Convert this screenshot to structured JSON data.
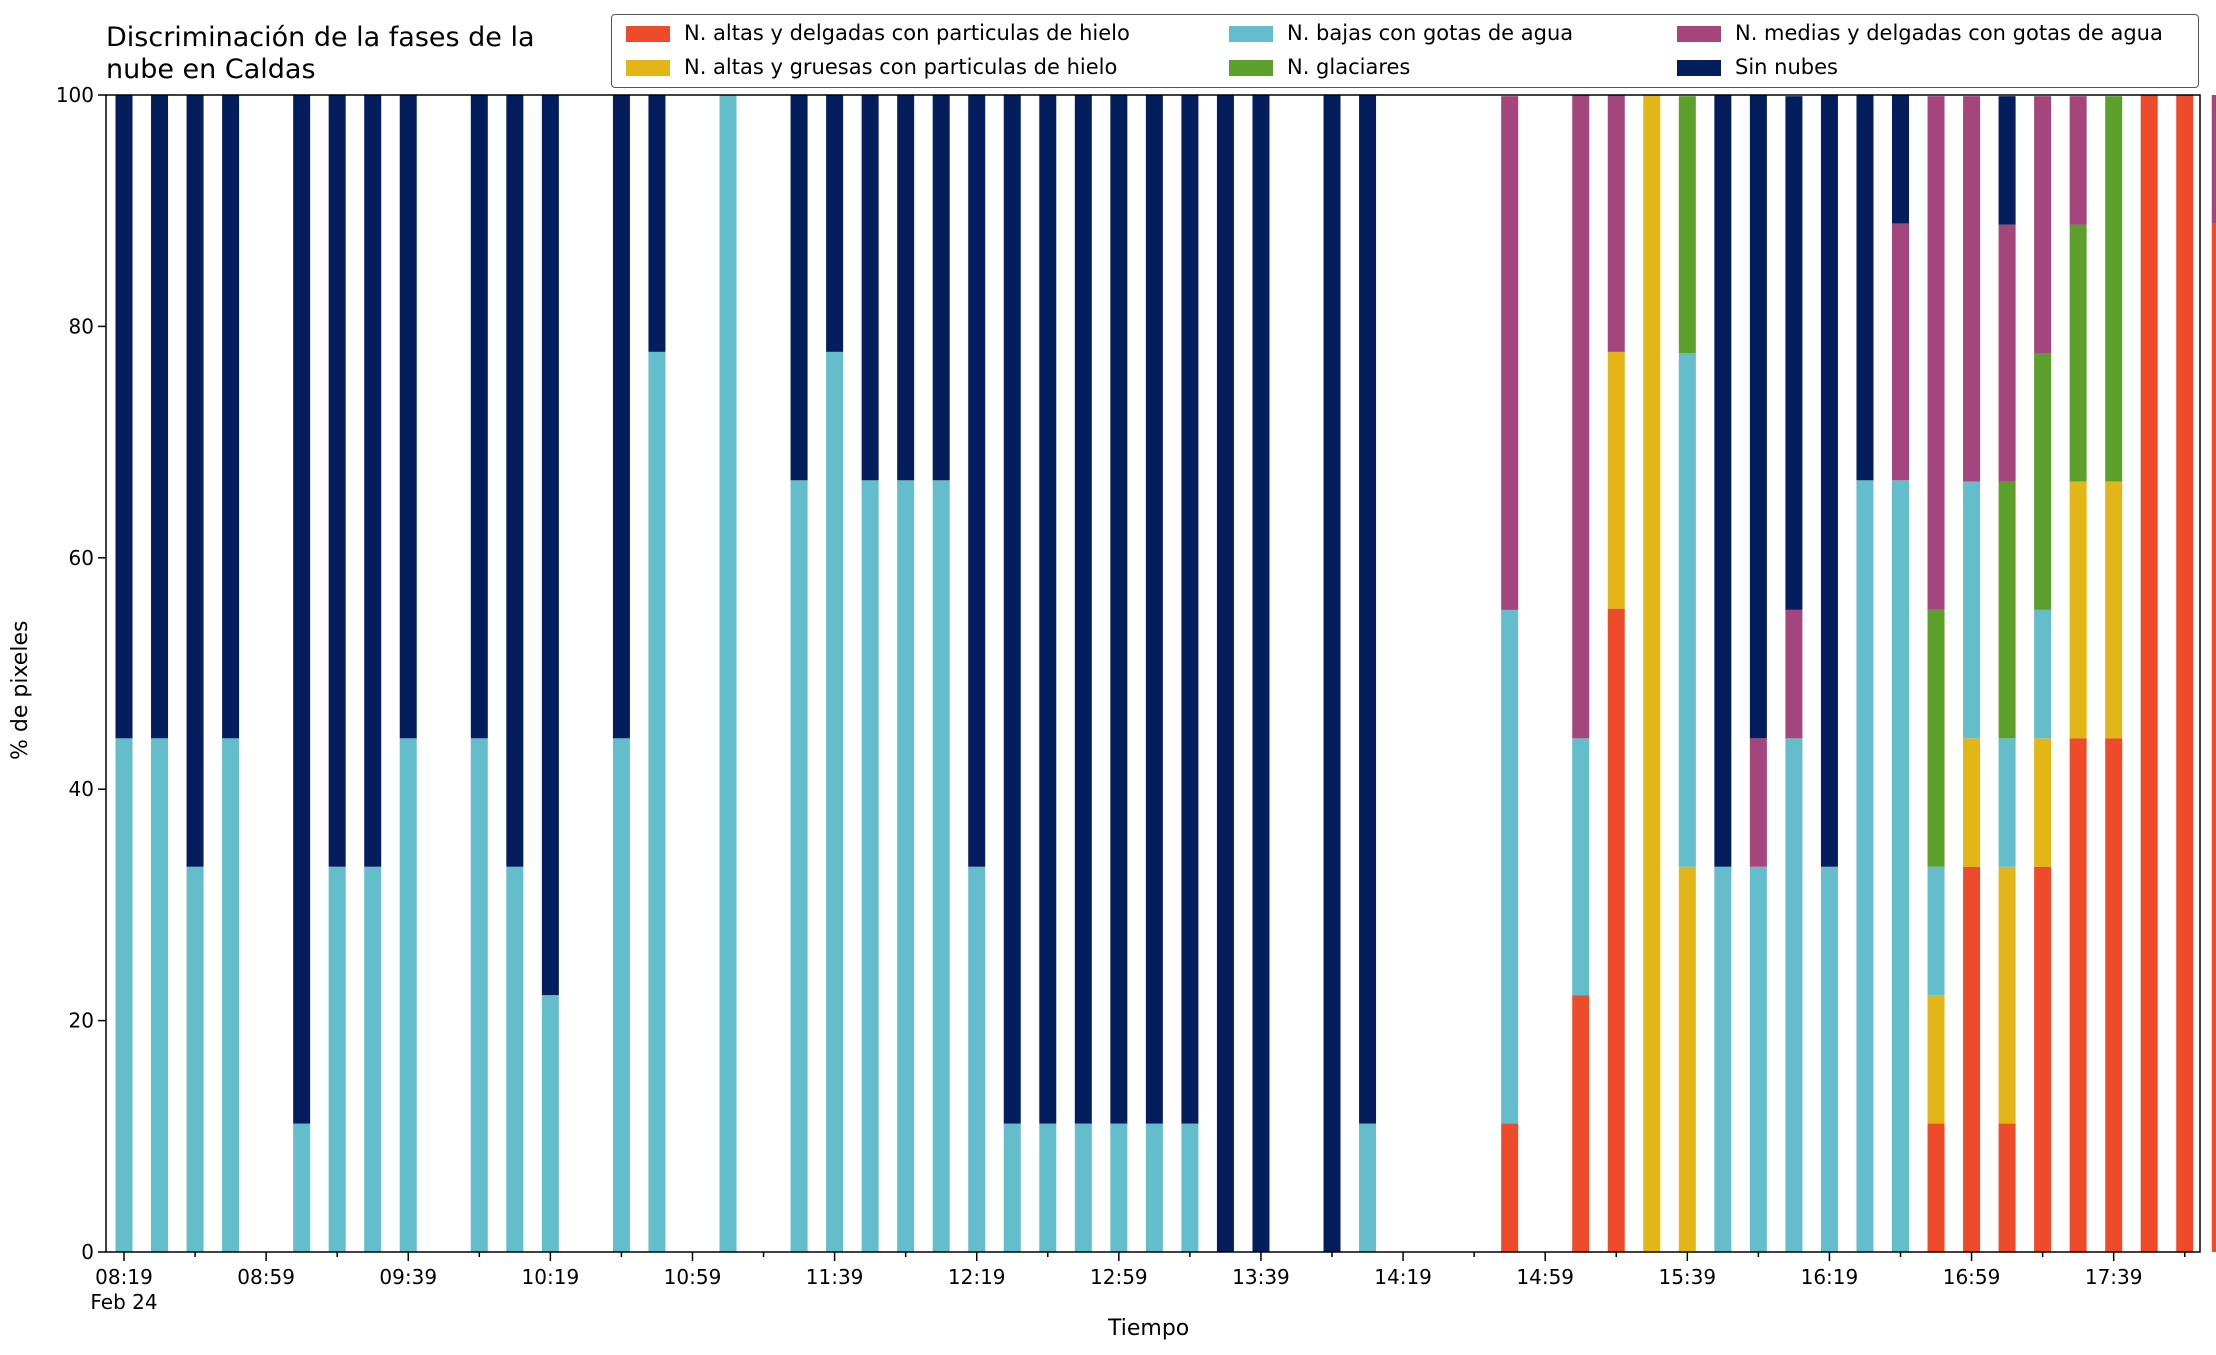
{
  "chart_data": {
    "type": "bar",
    "stacked": true,
    "title": "Discriminación de la fases de la\nnube en Caldas",
    "xlabel": "Tiempo",
    "ylabel": "% de pixeles",
    "ylim": [
      0,
      100
    ],
    "yticks": [
      "0",
      "20",
      "40",
      "60",
      "80",
      "100"
    ],
    "xtick_labels": [
      "08:19",
      "08:59",
      "09:39",
      "10:19",
      "10:59",
      "11:39",
      "12:19",
      "12:59",
      "13:39",
      "14:19",
      "14:59",
      "15:39",
      "16:19",
      "16:59",
      "17:39"
    ],
    "xtick_sublabel": "Feb 24",
    "time_start": "08:19",
    "time_step_minutes": 10,
    "grid": false,
    "legend_position": "top-right",
    "series": [
      {
        "name": "N. altas y delgadas con particulas de hielo",
        "color": "#ee4b2b",
        "values": [
          0,
          0,
          0,
          0,
          0,
          0,
          0,
          0,
          0,
          0,
          0,
          0,
          0,
          0,
          0,
          0,
          0,
          0,
          0,
          0,
          0,
          0,
          0,
          0,
          0,
          0,
          0,
          0,
          0,
          0,
          0,
          0,
          0,
          0,
          0,
          0,
          0,
          0,
          0,
          11.1,
          0,
          22.2,
          55.6,
          0,
          0,
          0,
          0,
          0,
          0,
          0,
          0,
          11.1,
          33.3,
          11.1,
          33.3,
          44.4,
          44.4,
          100,
          100,
          88.9
        ]
      },
      {
        "name": "N. altas y gruesas con particulas de hielo",
        "color": "#e3b618",
        "values": [
          0,
          0,
          0,
          0,
          0,
          0,
          0,
          0,
          0,
          0,
          0,
          0,
          0,
          0,
          0,
          0,
          0,
          0,
          0,
          0,
          0,
          0,
          0,
          0,
          0,
          0,
          0,
          0,
          0,
          0,
          0,
          0,
          0,
          0,
          0,
          0,
          0,
          0,
          0,
          0,
          0,
          0,
          22.2,
          100,
          33.3,
          0,
          0,
          0,
          0,
          0,
          0,
          11.1,
          11.1,
          22.2,
          11.1,
          22.2,
          22.2,
          0,
          0,
          0
        ]
      },
      {
        "name": "N. bajas con gotas de agua",
        "color": "#63bdca",
        "values": [
          44.4,
          44.4,
          33.3,
          44.4,
          0,
          11.1,
          33.3,
          33.3,
          44.4,
          0,
          44.4,
          33.3,
          22.2,
          0,
          44.4,
          77.8,
          0,
          100,
          0,
          66.7,
          77.8,
          66.7,
          66.7,
          66.7,
          33.3,
          11.1,
          11.1,
          11.1,
          11.1,
          11.1,
          11.1,
          0,
          0,
          0,
          0,
          11.1,
          0,
          0,
          0,
          44.4,
          0,
          22.2,
          0,
          0,
          44.4,
          33.3,
          33.3,
          44.4,
          33.3,
          66.7,
          66.7,
          11.1,
          22.2,
          11.1,
          11.1,
          0,
          0,
          0,
          0,
          0
        ]
      },
      {
        "name": "N. glaciares",
        "color": "#5ca02c",
        "values": [
          0,
          0,
          0,
          0,
          0,
          0,
          0,
          0,
          0,
          0,
          0,
          0,
          0,
          0,
          0,
          0,
          0,
          0,
          0,
          0,
          0,
          0,
          0,
          0,
          0,
          0,
          0,
          0,
          0,
          0,
          0,
          0,
          0,
          0,
          0,
          0,
          0,
          0,
          0,
          0,
          0,
          0,
          0,
          0,
          22.2,
          0,
          0,
          0,
          0,
          0,
          0,
          22.2,
          0,
          22.2,
          22.2,
          22.2,
          33.3,
          0,
          0,
          0
        ]
      },
      {
        "name": "N. medias y delgadas con gotas de agua",
        "color": "#a4457d",
        "values": [
          0,
          0,
          0,
          0,
          0,
          0,
          0,
          0,
          0,
          0,
          0,
          0,
          0,
          0,
          0,
          0,
          0,
          0,
          0,
          0,
          0,
          0,
          0,
          0,
          0,
          0,
          0,
          0,
          0,
          0,
          0,
          0,
          0,
          0,
          0,
          0,
          0,
          0,
          0,
          44.4,
          0,
          55.6,
          22.2,
          0,
          0,
          0,
          11.1,
          11.1,
          0,
          0,
          22.2,
          44.4,
          33.3,
          22.2,
          22.2,
          11.1,
          0,
          0,
          0,
          11.1
        ]
      },
      {
        "name": "Sin nubes",
        "color": "#041e5d",
        "values": [
          55.6,
          55.6,
          66.7,
          55.6,
          0,
          88.9,
          66.7,
          66.7,
          55.6,
          0,
          55.6,
          66.7,
          77.8,
          0,
          55.6,
          22.2,
          0,
          0,
          0,
          33.3,
          22.2,
          33.3,
          33.3,
          33.3,
          66.7,
          88.9,
          88.9,
          88.9,
          88.9,
          88.9,
          88.9,
          100,
          100,
          0,
          100,
          88.9,
          0,
          0,
          0,
          0,
          0,
          0,
          0,
          0,
          0,
          66.7,
          55.6,
          44.4,
          66.7,
          33.3,
          11.1,
          0,
          0,
          11.1,
          0,
          0,
          0,
          0,
          0,
          0
        ]
      }
    ]
  }
}
